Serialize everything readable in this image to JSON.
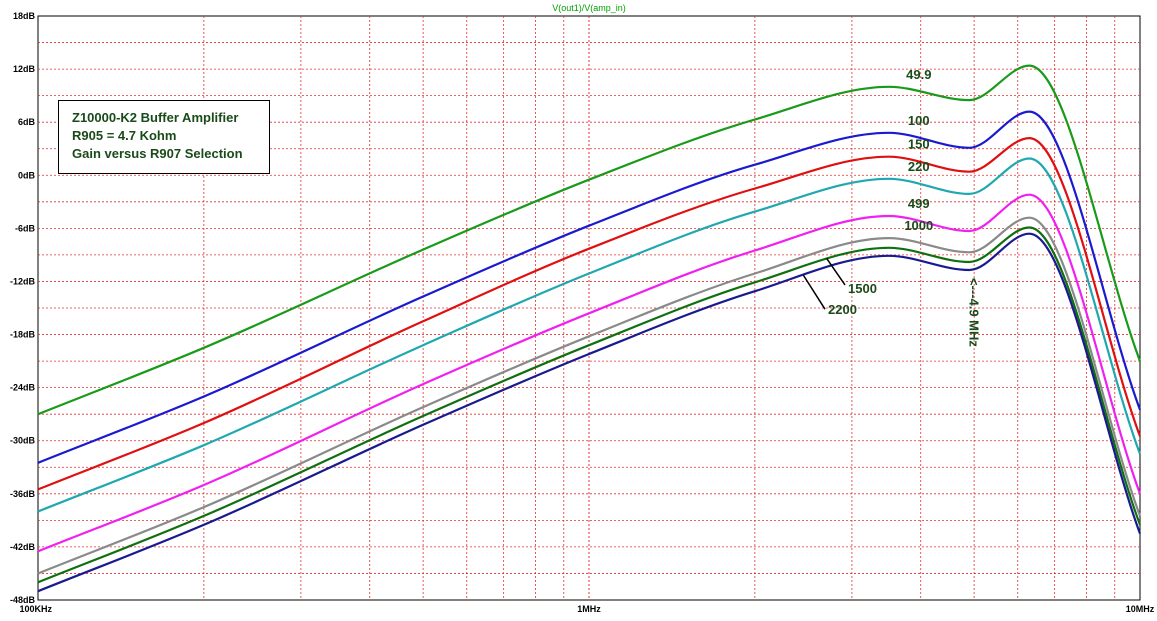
{
  "chart_data": {
    "type": "line",
    "title": "V(out1)/V(amp_in)",
    "xscale": "log",
    "xlim": [
      100000,
      10000000
    ],
    "ylim": [
      -48,
      18
    ],
    "grid": true,
    "x_tick_labels": [
      {
        "value": 100000,
        "label": "100KHz"
      },
      {
        "value": 1000000,
        "label": "1MHz"
      },
      {
        "value": 10000000,
        "label": "10MHz"
      }
    ],
    "y_tick_labels": [
      {
        "value": 18,
        "label": "18dB"
      },
      {
        "value": 12,
        "label": "12dB"
      },
      {
        "value": 6,
        "label": "6dB"
      },
      {
        "value": 0,
        "label": "0dB"
      },
      {
        "value": -6,
        "label": "-6dB"
      },
      {
        "value": -12,
        "label": "-12dB"
      },
      {
        "value": -18,
        "label": "-18dB"
      },
      {
        "value": -24,
        "label": "-24dB"
      },
      {
        "value": -30,
        "label": "-30dB"
      },
      {
        "value": -36,
        "label": "-36dB"
      },
      {
        "value": -42,
        "label": "-42dB"
      },
      {
        "value": -48,
        "label": "-48dB"
      }
    ],
    "x_hz": [
      100000,
      200000,
      500000,
      1000000,
      2000000,
      3500000,
      4900000,
      6300000,
      10000000
    ],
    "series": [
      {
        "name": "49.9",
        "color": "#1a9a1a",
        "values": [
          -27,
          -19.5,
          -8.4,
          -0.5,
          6.3,
          10,
          8.5,
          12.4,
          -21
        ]
      },
      {
        "name": "100",
        "color": "#1a1ad0",
        "values": [
          -32.5,
          -25,
          -13.7,
          -5.7,
          1.2,
          4.8,
          3.1,
          7.2,
          -26.5
        ]
      },
      {
        "name": "150",
        "color": "#e01010",
        "values": [
          -35.5,
          -28,
          -16.5,
          -8.3,
          -1.5,
          2.1,
          0.4,
          4.2,
          -29.5
        ]
      },
      {
        "name": "220",
        "color": "#20a8b0",
        "values": [
          -38,
          -30.5,
          -19.2,
          -11.1,
          -4.1,
          -0.4,
          -2.1,
          1.9,
          -31.5
        ]
      },
      {
        "name": "499",
        "color": "#f020f0",
        "values": [
          -42.5,
          -35,
          -23.6,
          -15.6,
          -8.5,
          -4.6,
          -6.3,
          -2.2,
          -36
        ]
      },
      {
        "name": "1000",
        "color": "#8a8a8a",
        "values": [
          -45,
          -37.5,
          -26.2,
          -18.2,
          -11.1,
          -7.1,
          -8.7,
          -4.8,
          -38.5
        ]
      },
      {
        "name": "1500",
        "color": "#107010",
        "values": [
          -46,
          -38.5,
          -27.2,
          -19.2,
          -12.1,
          -8.2,
          -9.8,
          -5.9,
          -39.5
        ]
      },
      {
        "name": "2200",
        "color": "#1a1a90",
        "values": [
          -47,
          -39.5,
          -28.2,
          -20.2,
          -13.1,
          -9.1,
          -10.7,
          -6.6,
          -40.5
        ]
      }
    ],
    "annotations": [
      {
        "text": "<---4.9 MHz",
        "x_hz": 4900000,
        "y_db": -15.5,
        "orientation": "vertical"
      }
    ]
  },
  "info_box": [
    "Z10000-K2 Buffer Amplifier",
    "R905 = 4.7 Kohm",
    "Gain versus R907 Selection"
  ]
}
